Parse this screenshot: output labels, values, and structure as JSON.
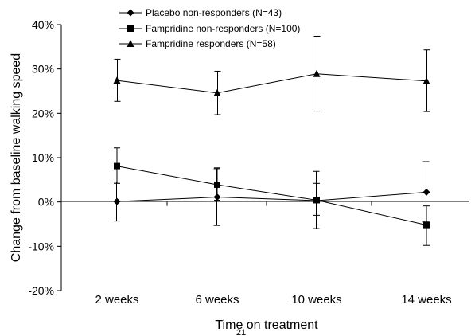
{
  "chart_data": {
    "type": "line",
    "title": "",
    "xlabel": "Time on treatment",
    "ylabel": "Change from baseline walking speed",
    "categories": [
      "2 weeks",
      "6 weeks",
      "10 weeks",
      "14 weeks"
    ],
    "ylim": [
      -20,
      40
    ],
    "yticks": [
      "-20%",
      "-10%",
      "0%",
      "10%",
      "20%",
      "30%",
      "40%"
    ],
    "grid": false,
    "legend_position": "top",
    "series": [
      {
        "name": "Placebo non-responders (N=43)",
        "marker": "diamond",
        "values": [
          0.1,
          1.1,
          0.3,
          2.2
        ],
        "error": [
          [
            -4.3,
            4.5
          ],
          [
            -5.3,
            7.5
          ],
          [
            -6.0,
            6.9
          ],
          [
            -4.5,
            9.1
          ]
        ]
      },
      {
        "name": "Fampridine non-responders (N=100)",
        "marker": "square",
        "values": [
          8.1,
          3.9,
          0.4,
          -5.2
        ],
        "error": [
          [
            4.2,
            12.2
          ],
          [
            0.4,
            7.7
          ],
          [
            -3.0,
            4.2
          ],
          [
            -9.8,
            -0.9
          ]
        ]
      },
      {
        "name": "Fampridine responders (N=58)",
        "marker": "triangle",
        "values": [
          27.4,
          24.6,
          28.9,
          27.3
        ],
        "error": [
          [
            22.7,
            32.2
          ],
          [
            19.7,
            29.5
          ],
          [
            20.5,
            37.4
          ],
          [
            20.4,
            34.3
          ]
        ]
      }
    ],
    "page_number": "21"
  }
}
